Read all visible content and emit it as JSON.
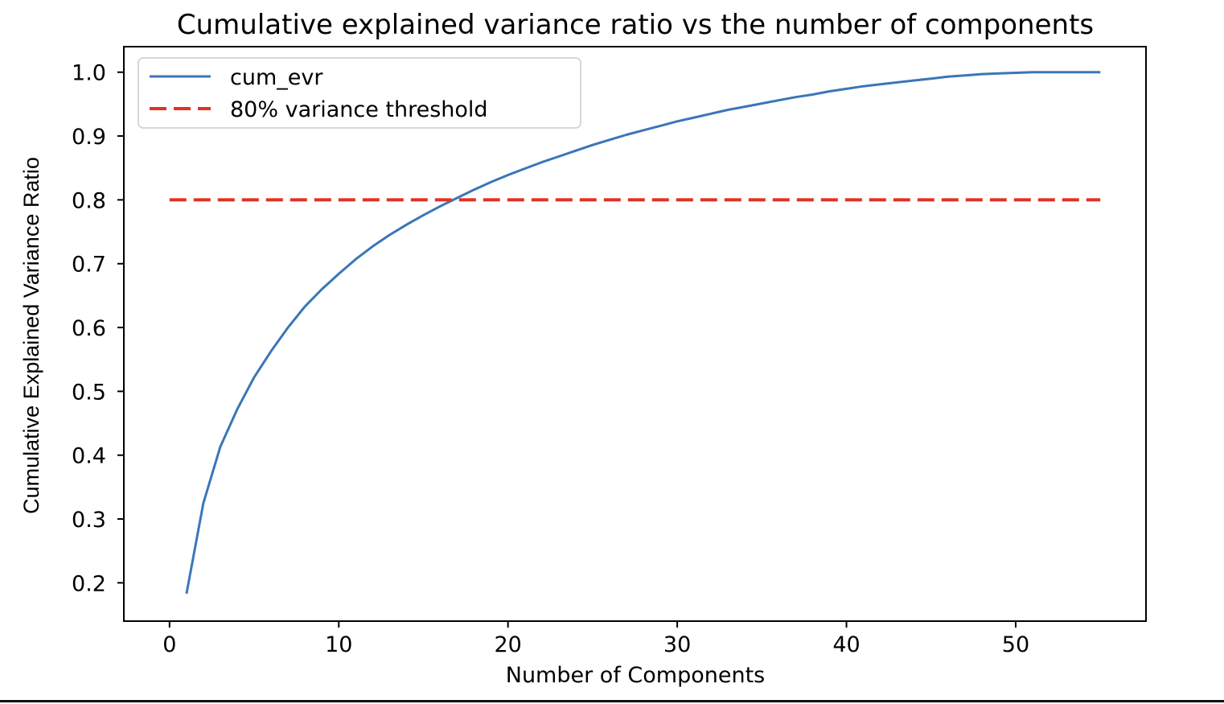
{
  "chart_data": {
    "type": "line",
    "title": "Cumulative explained variance ratio vs the number of components",
    "xlabel": "Number of Components",
    "ylabel": "Cumulative Explained Variance Ratio",
    "xlim": [
      -2.7,
      57.7
    ],
    "ylim": [
      0.14,
      1.04
    ],
    "xticks": [
      0,
      10,
      20,
      30,
      40,
      50
    ],
    "yticks": [
      0.2,
      0.3,
      0.4,
      0.5,
      0.6,
      0.7,
      0.8,
      0.9,
      1.0
    ],
    "ytick_labels": [
      "0.2",
      "0.3",
      "0.4",
      "0.5",
      "0.6",
      "0.7",
      "0.8",
      "0.9",
      "1.0"
    ],
    "grid": false,
    "legend": "upper-left",
    "series": [
      {
        "name": "cum_evr",
        "color": "#3a76b8",
        "style": "solid",
        "x": [
          1,
          2,
          3,
          4,
          5,
          6,
          7,
          8,
          9,
          10,
          11,
          12,
          13,
          14,
          15,
          16,
          17,
          18,
          19,
          20,
          21,
          22,
          23,
          24,
          25,
          26,
          27,
          28,
          29,
          30,
          31,
          32,
          33,
          34,
          35,
          36,
          37,
          38,
          39,
          40,
          41,
          42,
          43,
          44,
          45,
          46,
          47,
          48,
          49,
          50,
          51,
          52,
          53,
          54,
          55
        ],
        "y": [
          0.183,
          0.325,
          0.413,
          0.472,
          0.522,
          0.563,
          0.6,
          0.633,
          0.66,
          0.684,
          0.707,
          0.727,
          0.745,
          0.761,
          0.776,
          0.79,
          0.803,
          0.816,
          0.828,
          0.839,
          0.849,
          0.859,
          0.868,
          0.877,
          0.886,
          0.894,
          0.902,
          0.909,
          0.916,
          0.923,
          0.929,
          0.935,
          0.941,
          0.946,
          0.951,
          0.956,
          0.961,
          0.965,
          0.97,
          0.974,
          0.978,
          0.981,
          0.984,
          0.987,
          0.99,
          0.993,
          0.995,
          0.997,
          0.998,
          0.999,
          1.0,
          1.0,
          1.0,
          1.0,
          1.0
        ]
      },
      {
        "name": "80% variance threshold",
        "color": "#e23124",
        "style": "dashed",
        "x": [
          0,
          55
        ],
        "y": [
          0.8,
          0.8
        ]
      }
    ]
  }
}
